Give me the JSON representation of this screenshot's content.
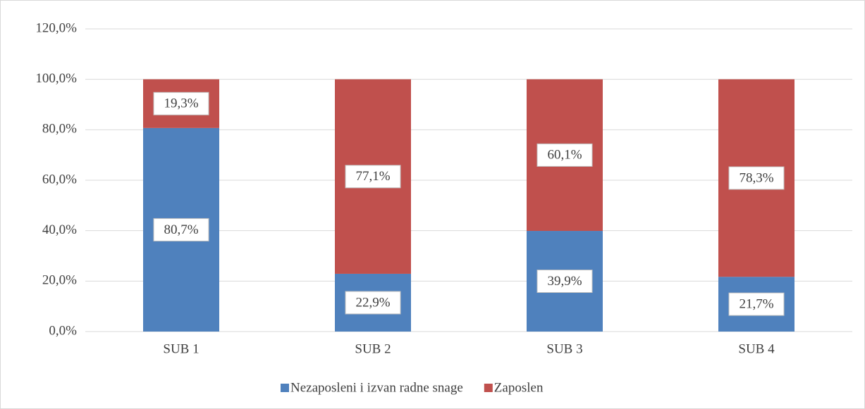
{
  "chart_data": {
    "type": "stacked_bar",
    "categories": [
      "SUB 1",
      "SUB 2",
      "SUB 3",
      "SUB 4"
    ],
    "series": [
      {
        "name": "Nezaposleni i izvan radne snage",
        "color": "#4f81bd",
        "values": [
          80.7,
          22.9,
          39.9,
          21.7
        ],
        "value_labels": [
          "80,7%",
          "22,9%",
          "39,9%",
          "21,7%"
        ]
      },
      {
        "name": "Zaposlen",
        "color": "#c0504d",
        "values": [
          19.3,
          77.1,
          60.1,
          78.3
        ],
        "value_labels": [
          "19,3%",
          "77,1%",
          "60,1%",
          "78,3%"
        ]
      }
    ],
    "ylim": [
      0,
      120
    ],
    "yticks": [
      {
        "value": 0,
        "label": "0,0%"
      },
      {
        "value": 20,
        "label": "20,0%"
      },
      {
        "value": 40,
        "label": "40,0%"
      },
      {
        "value": 60,
        "label": "60,0%"
      },
      {
        "value": 80,
        "label": "80,0%"
      },
      {
        "value": 100,
        "label": "100,0%"
      },
      {
        "value": 120,
        "label": "120,0%"
      }
    ],
    "grid": true,
    "legend": "bottom"
  }
}
